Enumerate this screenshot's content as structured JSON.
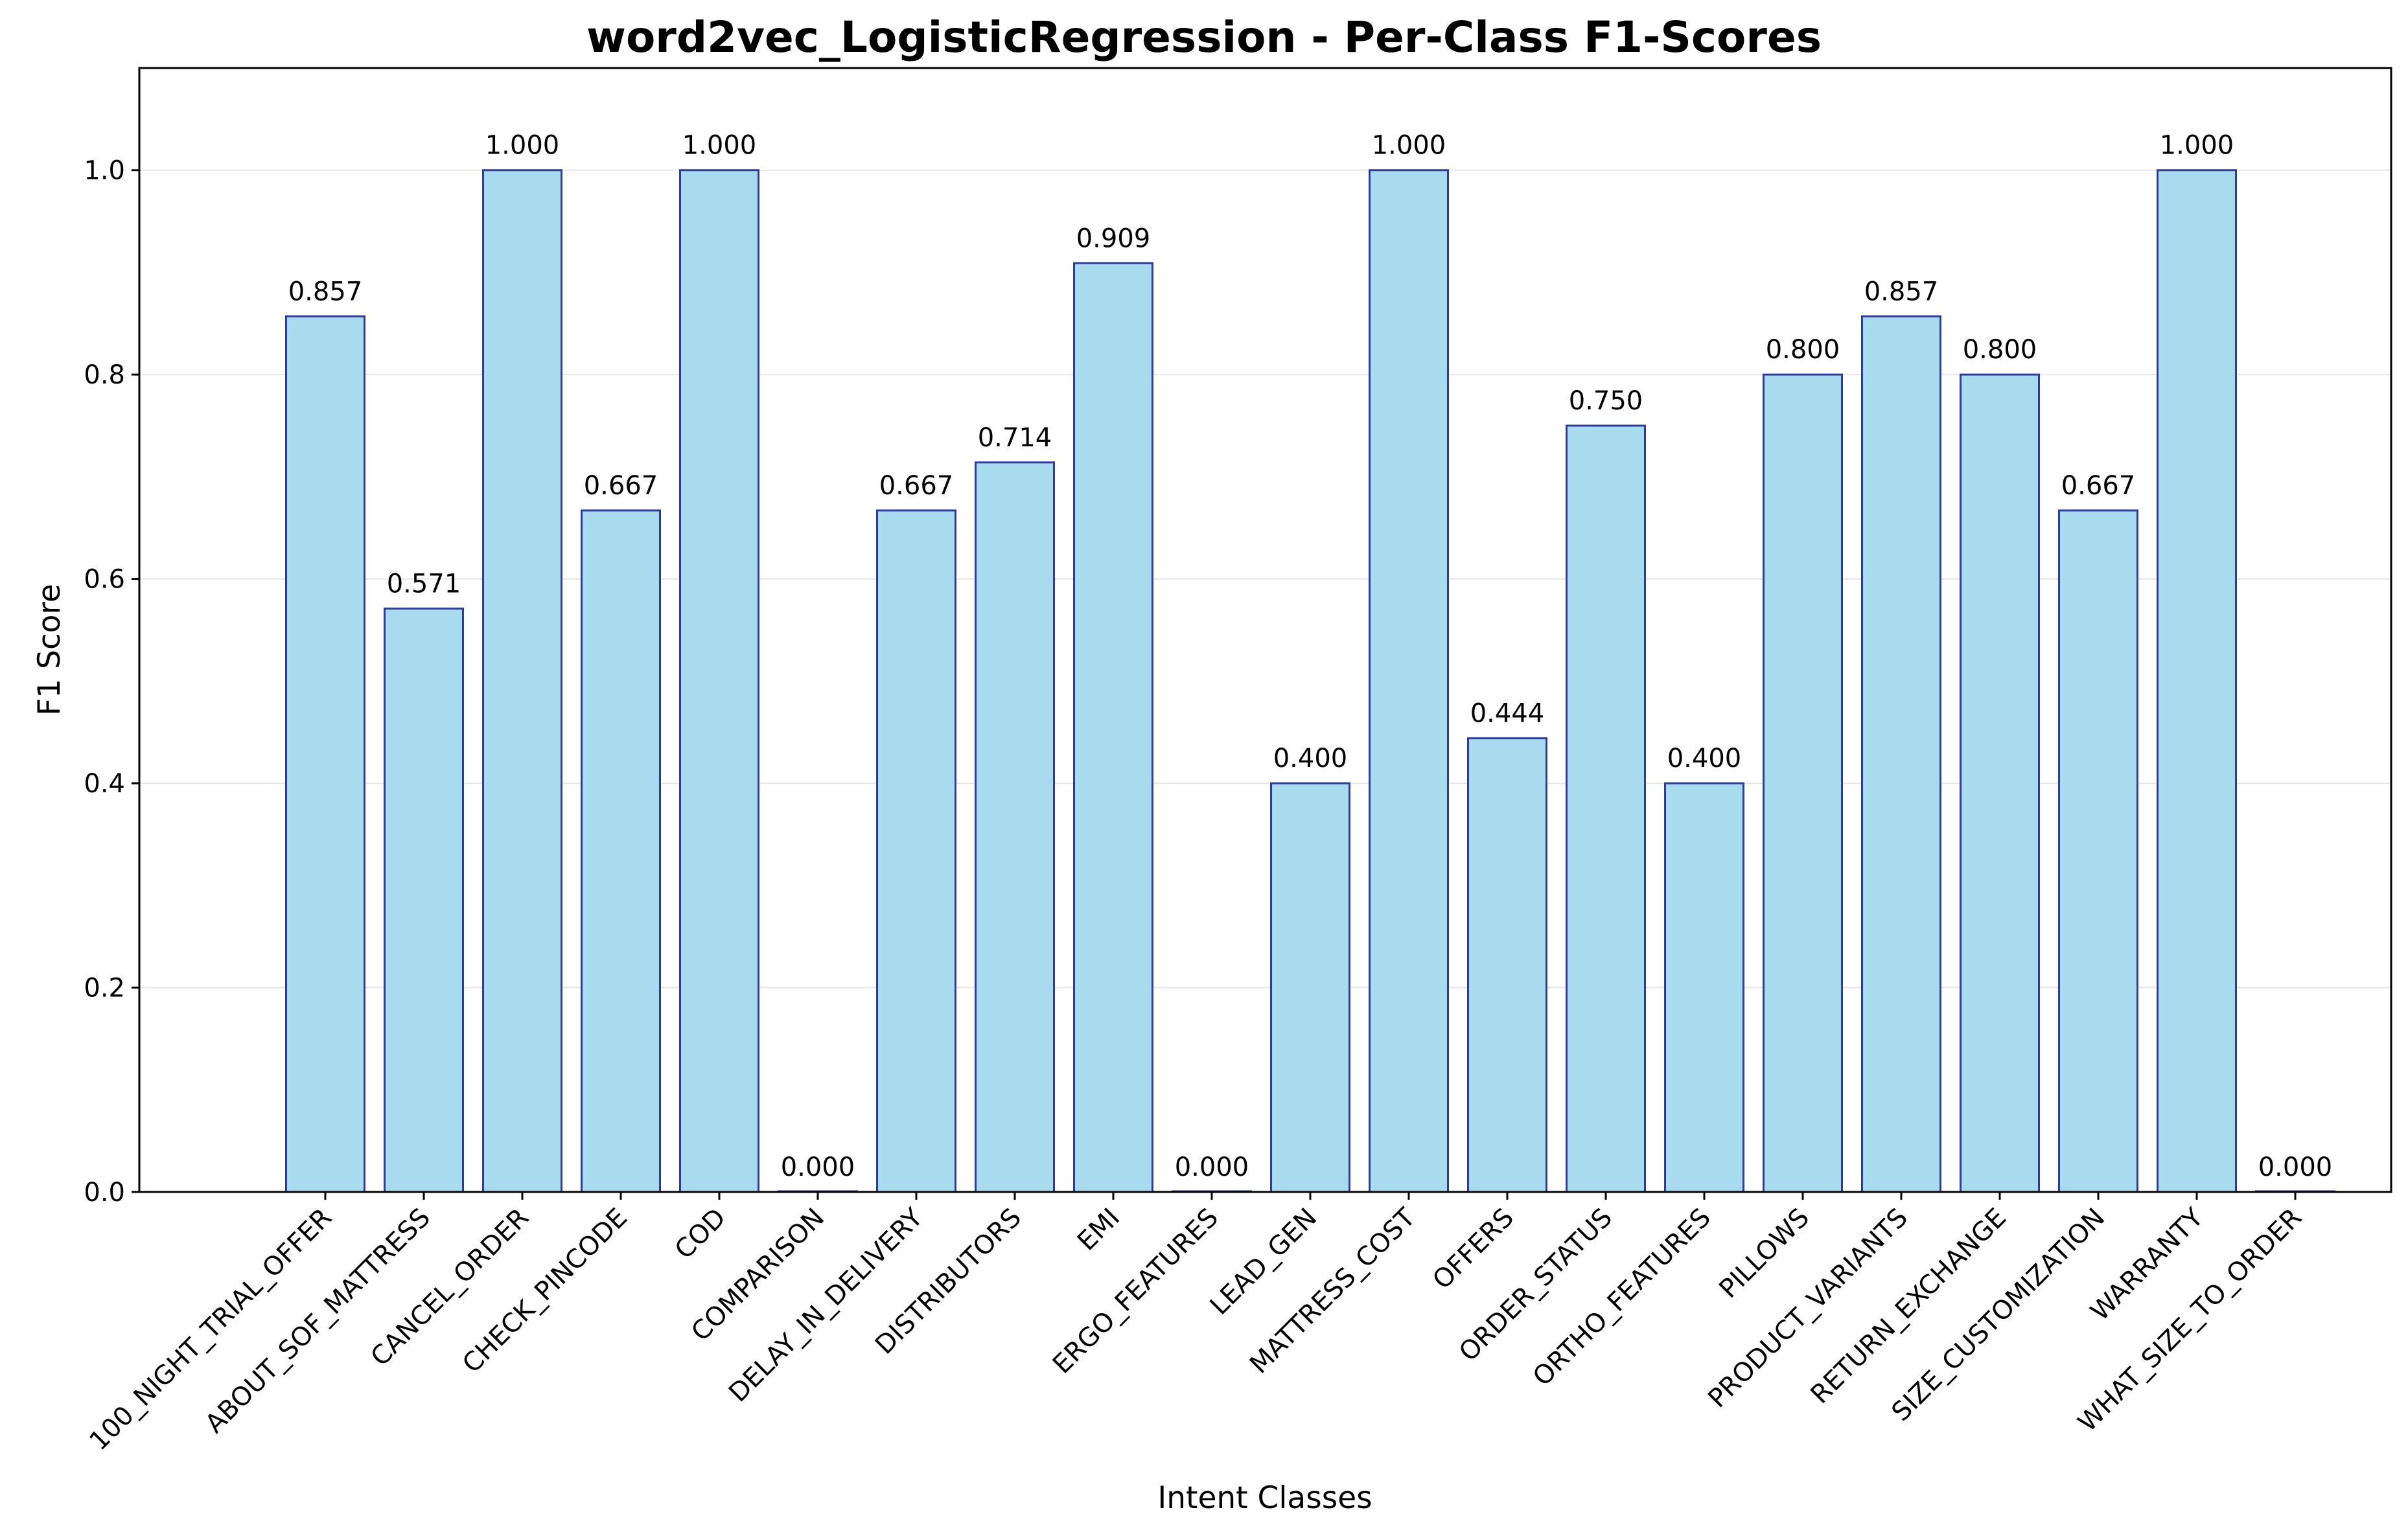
{
  "chart_data": {
    "type": "bar",
    "title": "word2vec_LogisticRegression - Per-Class F1-Scores",
    "xlabel": "Intent Classes",
    "ylabel": "F1 Score",
    "ylim": [
      0,
      1.1
    ],
    "yticks": [
      "0.0",
      "0.2",
      "0.4",
      "0.6",
      "0.8",
      "1.0"
    ],
    "grid": "horizontal",
    "legend": "none",
    "categories": [
      "100_NIGHT_TRIAL_OFFER",
      "ABOUT_SOF_MATTRESS",
      "CANCEL_ORDER",
      "CHECK_PINCODE",
      "COD",
      "COMPARISON",
      "DELAY_IN_DELIVERY",
      "DISTRIBUTORS",
      "EMI",
      "ERGO_FEATURES",
      "LEAD_GEN",
      "MATTRESS_COST",
      "OFFERS",
      "ORDER_STATUS",
      "ORTHO_FEATURES",
      "PILLOWS",
      "PRODUCT_VARIANTS",
      "RETURN_EXCHANGE",
      "SIZE_CUSTOMIZATION",
      "WARRANTY",
      "WHAT_SIZE_TO_ORDER"
    ],
    "values": [
      0.857,
      0.571,
      1.0,
      0.667,
      1.0,
      0.0,
      0.667,
      0.714,
      0.909,
      0.0,
      0.4,
      1.0,
      0.444,
      0.75,
      0.4,
      0.8,
      0.857,
      0.8,
      0.667,
      1.0,
      0.0
    ],
    "data_labels": [
      "0.857",
      "0.571",
      "1.000",
      "0.667",
      "1.000",
      "0.000",
      "0.667",
      "0.714",
      "0.909",
      "0.000",
      "0.400",
      "1.000",
      "0.444",
      "0.750",
      "0.400",
      "0.800",
      "0.857",
      "0.800",
      "0.667",
      "1.000",
      "0.000"
    ],
    "colors": {
      "bar_fill": "#a9dbef",
      "bar_edge": "#2e3c9e",
      "grid": "#e6e6e6",
      "axis": "#000000"
    }
  }
}
